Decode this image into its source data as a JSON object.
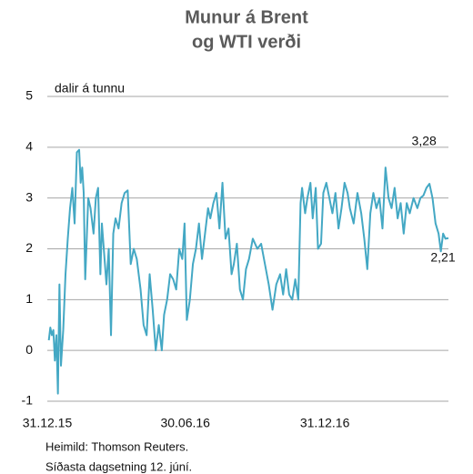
{
  "chart_data": {
    "type": "line",
    "title": [
      "Munur á Brent",
      "og WTI verði"
    ],
    "y_label": "dalir á tunnu",
    "source": "Heimild: Thomson Reuters.",
    "note": "Síðasta dagsetning 12. júní.",
    "color": "#44a8c4",
    "grid": true,
    "xlim": [
      "2015-12-31",
      "2017-06-12"
    ],
    "xticks": [
      {
        "value": "2015-12-31",
        "label": "31.12.15"
      },
      {
        "value": "2016-06-30",
        "label": "30.06.16"
      },
      {
        "value": "2016-12-31",
        "label": "31.12.16"
      }
    ],
    "ylim": [
      -1,
      5
    ],
    "yticks": [
      -1,
      0,
      1,
      2,
      3,
      4,
      5
    ],
    "annotations": [
      {
        "x": "2017-05-18",
        "y": 3.28,
        "label": "3,28"
      },
      {
        "x": "2017-06-12",
        "y": 2.21,
        "label": "2,21"
      }
    ],
    "x": [
      "2016-01-02",
      "2016-01-04",
      "2016-01-06",
      "2016-01-08",
      "2016-01-10",
      "2016-01-12",
      "2016-01-14",
      "2016-01-16",
      "2016-01-18",
      "2016-01-21",
      "2016-01-24",
      "2016-01-27",
      "2016-01-30",
      "2016-02-02",
      "2016-02-05",
      "2016-02-08",
      "2016-02-11",
      "2016-02-13",
      "2016-02-15",
      "2016-02-17",
      "2016-02-19",
      "2016-02-23",
      "2016-02-26",
      "2016-03-01",
      "2016-03-04",
      "2016-03-07",
      "2016-03-10",
      "2016-03-12",
      "2016-03-15",
      "2016-03-18",
      "2016-03-21",
      "2016-03-24",
      "2016-03-27",
      "2016-03-30",
      "2016-04-03",
      "2016-04-07",
      "2016-04-11",
      "2016-04-15",
      "2016-04-19",
      "2016-04-23",
      "2016-04-27",
      "2016-05-02",
      "2016-05-06",
      "2016-05-10",
      "2016-05-14",
      "2016-05-18",
      "2016-05-22",
      "2016-05-26",
      "2016-05-30",
      "2016-06-02",
      "2016-06-06",
      "2016-06-10",
      "2016-06-14",
      "2016-06-18",
      "2016-06-22",
      "2016-06-26",
      "2016-06-29",
      "2016-07-02",
      "2016-07-06",
      "2016-07-10",
      "2016-07-14",
      "2016-07-18",
      "2016-07-22",
      "2016-07-26",
      "2016-07-30",
      "2016-08-02",
      "2016-08-06",
      "2016-08-10",
      "2016-08-14",
      "2016-08-18",
      "2016-08-22",
      "2016-08-26",
      "2016-08-30",
      "2016-09-02",
      "2016-09-06",
      "2016-09-10",
      "2016-09-14",
      "2016-09-18",
      "2016-09-22",
      "2016-09-27",
      "2016-10-03",
      "2016-10-08",
      "2016-10-13",
      "2016-10-18",
      "2016-10-23",
      "2016-10-28",
      "2016-11-02",
      "2016-11-06",
      "2016-11-10",
      "2016-11-14",
      "2016-11-18",
      "2016-11-22",
      "2016-11-26",
      "2016-11-29",
      "2016-12-01",
      "2016-12-05",
      "2016-12-08",
      "2016-12-12",
      "2016-12-15",
      "2016-12-19",
      "2016-12-22",
      "2016-12-26",
      "2016-12-29",
      "2017-01-02",
      "2017-01-06",
      "2017-01-10",
      "2017-01-14",
      "2017-01-18",
      "2017-01-22",
      "2017-01-26",
      "2017-01-30",
      "2017-02-02",
      "2017-02-07",
      "2017-02-12",
      "2017-02-17",
      "2017-02-21",
      "2017-02-25",
      "2017-03-01",
      "2017-03-05",
      "2017-03-09",
      "2017-03-13",
      "2017-03-17",
      "2017-03-21",
      "2017-03-25",
      "2017-03-29",
      "2017-04-02",
      "2017-04-06",
      "2017-04-10",
      "2017-04-14",
      "2017-04-18",
      "2017-04-22",
      "2017-04-27",
      "2017-05-02",
      "2017-05-06",
      "2017-05-10",
      "2017-05-14",
      "2017-05-18",
      "2017-05-22",
      "2017-05-26",
      "2017-05-30",
      "2017-06-02",
      "2017-06-05",
      "2017-06-08",
      "2017-06-12"
    ],
    "values": [
      0.2,
      0.45,
      0.3,
      0.4,
      -0.2,
      0.3,
      -0.85,
      1.3,
      -0.3,
      0.4,
      1.5,
      2.2,
      2.8,
      3.2,
      2.5,
      3.9,
      3.95,
      3.3,
      3.6,
      3.1,
      1.4,
      3.0,
      2.8,
      2.3,
      3.0,
      3.2,
      1.5,
      2.5,
      1.9,
      1.3,
      2.0,
      0.3,
      2.3,
      2.6,
      2.4,
      2.9,
      3.1,
      3.15,
      1.7,
      2.0,
      1.8,
      1.2,
      0.5,
      0.3,
      1.5,
      0.8,
      0.0,
      0.5,
      0.0,
      0.7,
      1.0,
      1.5,
      1.4,
      1.2,
      2.0,
      1.8,
      2.5,
      0.6,
      1.0,
      1.7,
      2.0,
      2.5,
      1.8,
      2.3,
      2.8,
      2.6,
      2.9,
      3.1,
      2.4,
      3.3,
      2.2,
      2.4,
      1.5,
      1.7,
      2.1,
      1.2,
      1.0,
      1.6,
      1.8,
      2.2,
      2.0,
      2.1,
      1.7,
      1.3,
      0.8,
      1.3,
      1.5,
      1.1,
      1.6,
      1.1,
      1.0,
      1.4,
      1.0,
      2.9,
      3.2,
      2.7,
      3.0,
      3.3,
      2.6,
      3.2,
      2.0,
      2.1,
      3.1,
      3.3,
      3.0,
      2.7,
      3.1,
      2.4,
      2.8,
      3.3,
      3.1,
      2.8,
      2.5,
      3.1,
      2.7,
      2.2,
      1.6,
      2.7,
      3.1,
      2.8,
      3.0,
      2.4,
      3.6,
      3.0,
      2.8,
      3.2,
      2.6,
      2.9,
      2.3,
      2.9,
      2.7,
      3.0,
      2.8,
      3.0,
      3.05,
      3.2,
      3.28,
      3.0,
      2.5,
      2.3,
      1.95,
      2.3,
      2.2,
      2.21
    ]
  }
}
